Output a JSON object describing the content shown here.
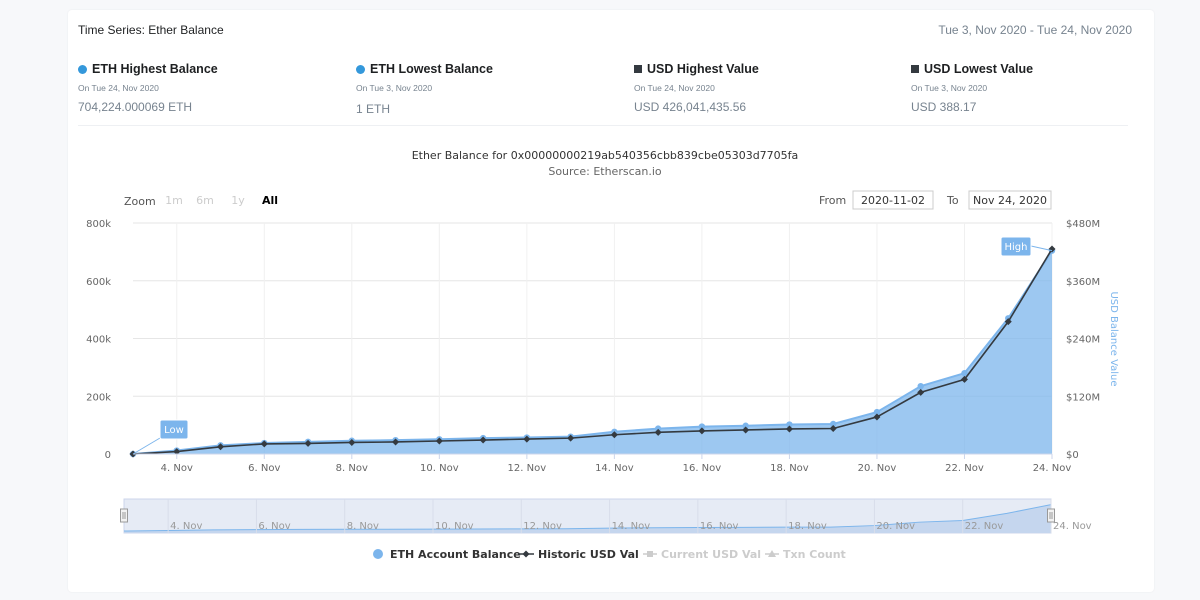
{
  "header": {
    "title": "Time Series: Ether Balance",
    "date_range": "Tue 3, Nov 2020 - Tue 24, Nov 2020"
  },
  "stats": [
    {
      "title": "ETH Highest Balance",
      "date": "On Tue 24, Nov 2020",
      "value": "704,224.000069 ETH",
      "marker": "dot",
      "color": "#3498db"
    },
    {
      "title": "ETH Lowest Balance",
      "date": "On Tue 3, Nov 2020",
      "value": "1 ETH",
      "marker": "dot",
      "color": "#3498db"
    },
    {
      "title": "USD Highest Value",
      "date": "On Tue 24, Nov 2020",
      "value": "USD 426,041,435.56",
      "marker": "square",
      "color": "#343a40"
    },
    {
      "title": "USD Lowest Value",
      "date": "On Tue 3, Nov 2020",
      "value": "USD 388.17",
      "marker": "square",
      "color": "#343a40"
    }
  ],
  "chart_data": {
    "type": "area",
    "title": "Ether Balance for 0x00000000219ab540356cbb839cbe05303d7705fa",
    "subtitle": "Source: Etherscan.io",
    "x": [
      "3. Nov",
      "4. Nov",
      "5. Nov",
      "6. Nov",
      "7. Nov",
      "8. Nov",
      "9. Nov",
      "10. Nov",
      "11. Nov",
      "12. Nov",
      "13. Nov",
      "14. Nov",
      "15. Nov",
      "16. Nov",
      "17. Nov",
      "18. Nov",
      "19. Nov",
      "20. Nov",
      "21. Nov",
      "22. Nov",
      "23. Nov",
      "24. Nov"
    ],
    "x_ticks": [
      "4. Nov",
      "6. Nov",
      "8. Nov",
      "10. Nov",
      "12. Nov",
      "14. Nov",
      "16. Nov",
      "18. Nov",
      "20. Nov",
      "22. Nov",
      "24. Nov"
    ],
    "series": [
      {
        "name": "ETH Account Balance",
        "axis": "left",
        "color": "#7cb5ec",
        "values": [
          1,
          12000,
          30000,
          38000,
          42000,
          46000,
          48000,
          51000,
          55000,
          57000,
          60000,
          77000,
          88000,
          95000,
          98000,
          102000,
          104000,
          145000,
          235000,
          280000,
          470000,
          704224
        ]
      },
      {
        "name": "Historic USD Val",
        "axis": "right",
        "color": "#343a40",
        "values": [
          388.17,
          5000000,
          15000000,
          21000000,
          22000000,
          24000000,
          25000000,
          27000000,
          29000000,
          31000000,
          33000000,
          40000000,
          45000000,
          48000000,
          50000000,
          52000000,
          53000000,
          77000000,
          128000000,
          155000000,
          275000000,
          426041435.56
        ]
      }
    ],
    "legend_extra": [
      "Current USD Val",
      "Txn Count"
    ],
    "y_left": {
      "ticks": [
        "0",
        "200k",
        "400k",
        "600k",
        "800k"
      ],
      "min": 0,
      "max": 800000
    },
    "y_right": {
      "ticks": [
        "$0",
        "$120M",
        "$240M",
        "$360M",
        "$480M"
      ],
      "min": 0,
      "max": 480000000,
      "label": "USD Balance Value"
    },
    "flags": {
      "low": "Low",
      "high": "High"
    },
    "navigator": {
      "range": [
        0,
        21
      ]
    }
  },
  "controls": {
    "zoom_label": "Zoom",
    "zoom_options": [
      "1m",
      "6m",
      "1y",
      "All"
    ],
    "zoom_selected": "All",
    "from_label": "From",
    "from_value": "2020-11-02",
    "to_label": "To",
    "to_value": "Nov 24, 2020"
  }
}
